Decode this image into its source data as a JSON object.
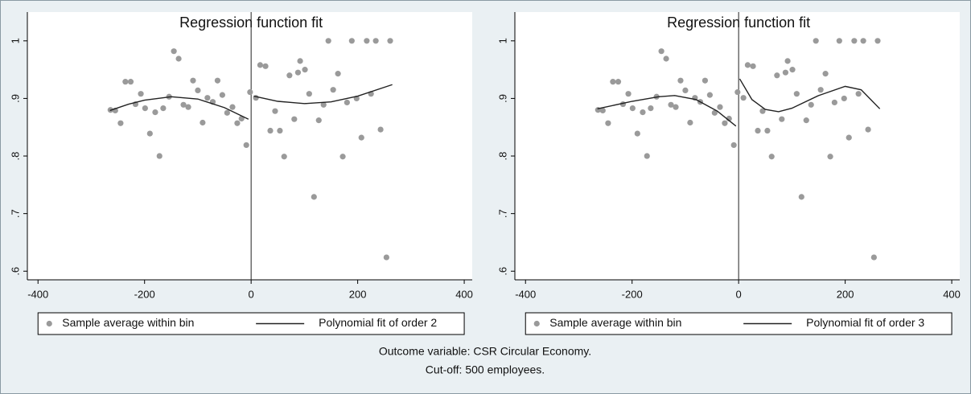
{
  "chart_data": [
    {
      "type": "scatter",
      "title": "Regression function fit",
      "xlim": [
        -420,
        415
      ],
      "ylim": [
        0.585,
        1.05
      ],
      "xticks": [
        -400,
        -200,
        0,
        200,
        400
      ],
      "yticks": [
        {
          "value": 0.6,
          "label": ".6"
        },
        {
          "value": 0.7,
          "label": ".7"
        },
        {
          "value": 0.8,
          "label": ".8"
        },
        {
          "value": 0.9,
          "label": ".9"
        },
        1
      ],
      "cutoff": 0,
      "series": [
        {
          "name": "Sample average within bin",
          "type": "scatter",
          "color": "#9a9a9a",
          "x": [
            -264,
            -255,
            -245,
            -236,
            -226,
            -217,
            -207,
            -199,
            -190,
            -180,
            -172,
            -165,
            -154,
            -145,
            -136,
            -127,
            -118,
            -109,
            -100,
            -91,
            -82,
            -72,
            -63,
            -54,
            -45,
            -35,
            -26,
            -18,
            -9,
            -2,
            9,
            17,
            27,
            36,
            45,
            54,
            62,
            72,
            81,
            88,
            92,
            101,
            109,
            118,
            127,
            136,
            145,
            154,
            163,
            172,
            180,
            189,
            198,
            207,
            217,
            225,
            234,
            243,
            254,
            261
          ],
          "values": [
            0.88,
            0.879,
            0.857,
            0.929,
            0.929,
            0.89,
            0.908,
            0.883,
            0.839,
            0.876,
            0.8,
            0.883,
            0.903,
            0.982,
            0.969,
            0.889,
            0.885,
            0.931,
            0.914,
            0.858,
            0.901,
            0.894,
            0.931,
            0.906,
            0.875,
            0.885,
            0.857,
            0.865,
            0.819,
            0.911,
            0.901,
            0.958,
            0.956,
            0.844,
            0.878,
            0.844,
            0.799,
            0.94,
            0.864,
            0.945,
            0.965,
            0.95,
            0.908,
            0.729,
            0.862,
            0.889,
            1.0,
            0.915,
            0.943,
            0.799,
            0.893,
            1.0,
            0.9,
            0.832,
            1.0,
            0.908,
            1.0,
            0.846,
            0.624,
            1.0
          ]
        },
        {
          "name": "Polynomial fit of order 2",
          "type": "line",
          "color": "#222222",
          "x": [
            -265,
            -230,
            -200,
            -150,
            -100,
            -50,
            -5,
            0,
            5,
            50,
            100,
            150,
            200,
            265
          ],
          "values": [
            0.879,
            0.89,
            0.897,
            0.903,
            0.899,
            0.884,
            0.864,
            null,
            0.904,
            0.895,
            0.891,
            0.894,
            0.904,
            0.924
          ]
        }
      ]
    },
    {
      "type": "scatter",
      "title": "Regression function fit",
      "xlim": [
        -420,
        415
      ],
      "ylim": [
        0.585,
        1.05
      ],
      "xticks": [
        -400,
        -200,
        0,
        200,
        400
      ],
      "yticks": [
        {
          "value": 0.6,
          "label": ".6"
        },
        {
          "value": 0.7,
          "label": ".7"
        },
        {
          "value": 0.8,
          "label": ".8"
        },
        {
          "value": 0.9,
          "label": ".9"
        },
        1
      ],
      "cutoff": 0,
      "series": [
        {
          "name": "Sample average within bin",
          "type": "scatter",
          "color": "#9a9a9a",
          "x": [
            -264,
            -255,
            -245,
            -236,
            -226,
            -217,
            -207,
            -199,
            -190,
            -180,
            -172,
            -165,
            -154,
            -145,
            -136,
            -127,
            -118,
            -109,
            -100,
            -91,
            -82,
            -72,
            -63,
            -54,
            -45,
            -35,
            -26,
            -18,
            -9,
            -2,
            9,
            17,
            27,
            36,
            45,
            54,
            62,
            72,
            81,
            88,
            92,
            101,
            109,
            118,
            127,
            136,
            145,
            154,
            163,
            172,
            180,
            189,
            198,
            207,
            217,
            225,
            234,
            243,
            254,
            261
          ],
          "values": [
            0.88,
            0.879,
            0.857,
            0.929,
            0.929,
            0.89,
            0.908,
            0.883,
            0.839,
            0.876,
            0.8,
            0.883,
            0.903,
            0.982,
            0.969,
            0.889,
            0.885,
            0.931,
            0.914,
            0.858,
            0.901,
            0.894,
            0.931,
            0.906,
            0.875,
            0.885,
            0.857,
            0.865,
            0.819,
            0.911,
            0.901,
            0.958,
            0.956,
            0.844,
            0.878,
            0.844,
            0.799,
            0.94,
            0.864,
            0.945,
            0.965,
            0.95,
            0.908,
            0.729,
            0.862,
            0.889,
            1.0,
            0.915,
            0.943,
            0.799,
            0.893,
            1.0,
            0.9,
            0.832,
            1.0,
            0.908,
            1.0,
            0.846,
            0.624,
            1.0
          ]
        },
        {
          "name": "Polynomial fit of order 3",
          "type": "line",
          "color": "#222222",
          "x": [
            -265,
            -200,
            -150,
            -120,
            -80,
            -40,
            -5,
            0,
            2,
            25,
            50,
            75,
            100,
            150,
            200,
            230,
            265
          ],
          "values": [
            0.882,
            0.895,
            0.903,
            0.905,
            0.898,
            0.878,
            0.852,
            null,
            0.934,
            0.898,
            0.881,
            0.877,
            0.883,
            0.905,
            0.921,
            0.915,
            0.882
          ]
        }
      ]
    }
  ],
  "caption": [
    "Outcome variable: CSR Circular Economy.",
    "Cut-off: 500 employees."
  ]
}
